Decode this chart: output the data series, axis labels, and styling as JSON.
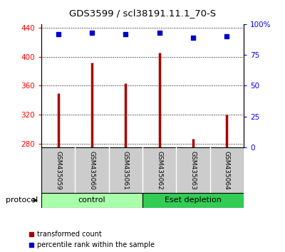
{
  "title": "GDS3599 / scl38191.11.1_70-S",
  "samples": [
    "GSM435059",
    "GSM435060",
    "GSM435061",
    "GSM435062",
    "GSM435063",
    "GSM435064"
  ],
  "red_values": [
    350,
    392,
    363,
    405,
    287,
    320
  ],
  "blue_values": [
    92,
    93,
    92,
    93,
    89,
    90
  ],
  "ylim_left": [
    275,
    445
  ],
  "ylim_right": [
    0,
    100
  ],
  "yticks_left": [
    280,
    320,
    360,
    400,
    440
  ],
  "yticks_right": [
    0,
    25,
    50,
    75,
    100
  ],
  "bar_color": "#AA0000",
  "dot_color": "#0000CC",
  "control_color": "#AAFFAA",
  "eset_color": "#33CC55",
  "tick_bg_color": "#CCCCCC",
  "protocol_label": "protocol",
  "control_label": "control",
  "eset_label": "Eset depletion",
  "legend_red": "transformed count",
  "legend_blue": "percentile rank within the sample"
}
